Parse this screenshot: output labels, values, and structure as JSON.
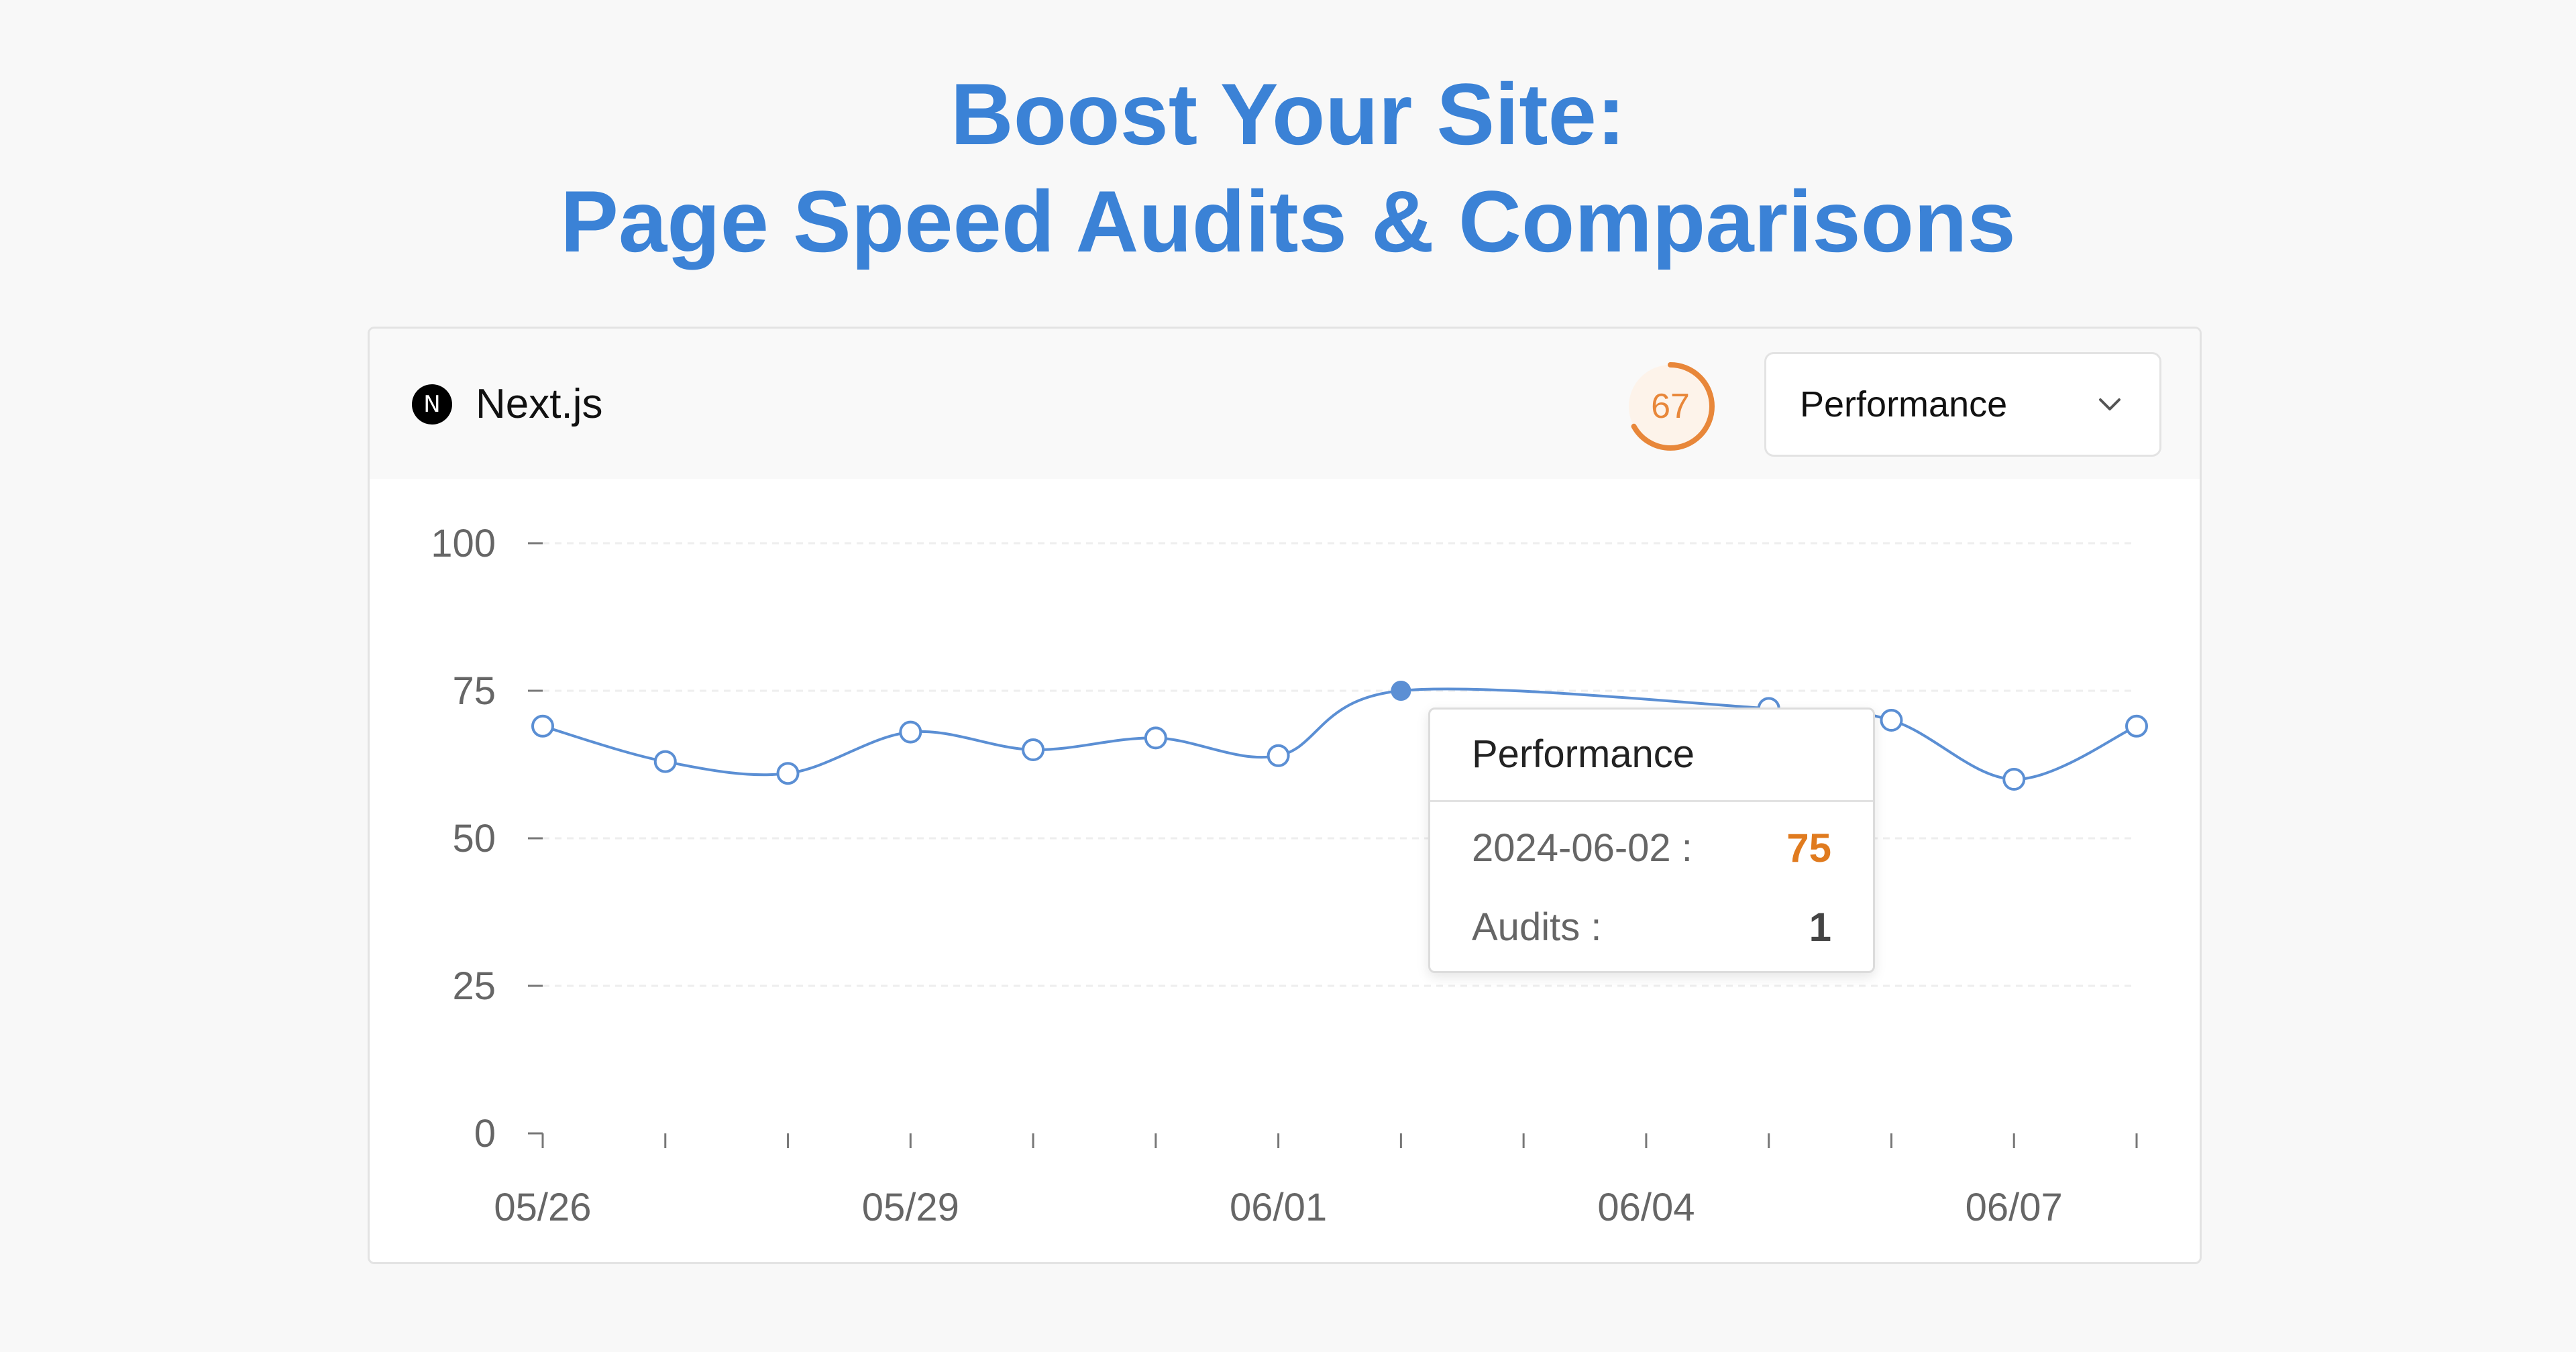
{
  "headline": {
    "line1": "Boost Your Site:",
    "line2": "Page Speed Audits & Comparisons"
  },
  "card": {
    "logo_letter": "N",
    "logo_icon": "nextjs-logo-icon",
    "app_name": "Next.js",
    "score": "67",
    "score_value": 67,
    "score_color": "#e8873a",
    "dropdown": {
      "selected": "Performance",
      "icon": "chevron-down-icon"
    }
  },
  "tooltip": {
    "title": "Performance",
    "date_label": "2024-06-02 :",
    "value": "75",
    "audits_label": "Audits :",
    "audits_value": "1"
  },
  "chart_data": {
    "type": "line",
    "title": "",
    "xlabel": "",
    "ylabel": "",
    "x": [
      "2024-05-26",
      "2024-05-27",
      "2024-05-28",
      "2024-05-29",
      "2024-05-30",
      "2024-05-31",
      "2024-06-01",
      "2024-06-02",
      "2024-06-03",
      "2024-06-04",
      "2024-06-05",
      "2024-06-06",
      "2024-06-07",
      "2024-06-08"
    ],
    "x_tick_labels": [
      {
        "x": "2024-05-26",
        "label": "05/26"
      },
      {
        "x": "2024-05-29",
        "label": "05/29"
      },
      {
        "x": "2024-06-01",
        "label": "06/01"
      },
      {
        "x": "2024-06-04",
        "label": "06/04"
      },
      {
        "x": "2024-06-07",
        "label": "06/07"
      }
    ],
    "series": [
      {
        "values": [
          69,
          63,
          61,
          68,
          65,
          67,
          64,
          75,
          null,
          null,
          72,
          70,
          60,
          69
        ]
      }
    ],
    "highlighted_point": {
      "x": "2024-06-02",
      "y": 75
    },
    "ylim": [
      0,
      100
    ],
    "y_ticks": [
      0,
      25,
      50,
      75,
      100
    ],
    "line_color": "#5b8fd4",
    "grid": true,
    "grid_style": "dashed-horizontal"
  }
}
